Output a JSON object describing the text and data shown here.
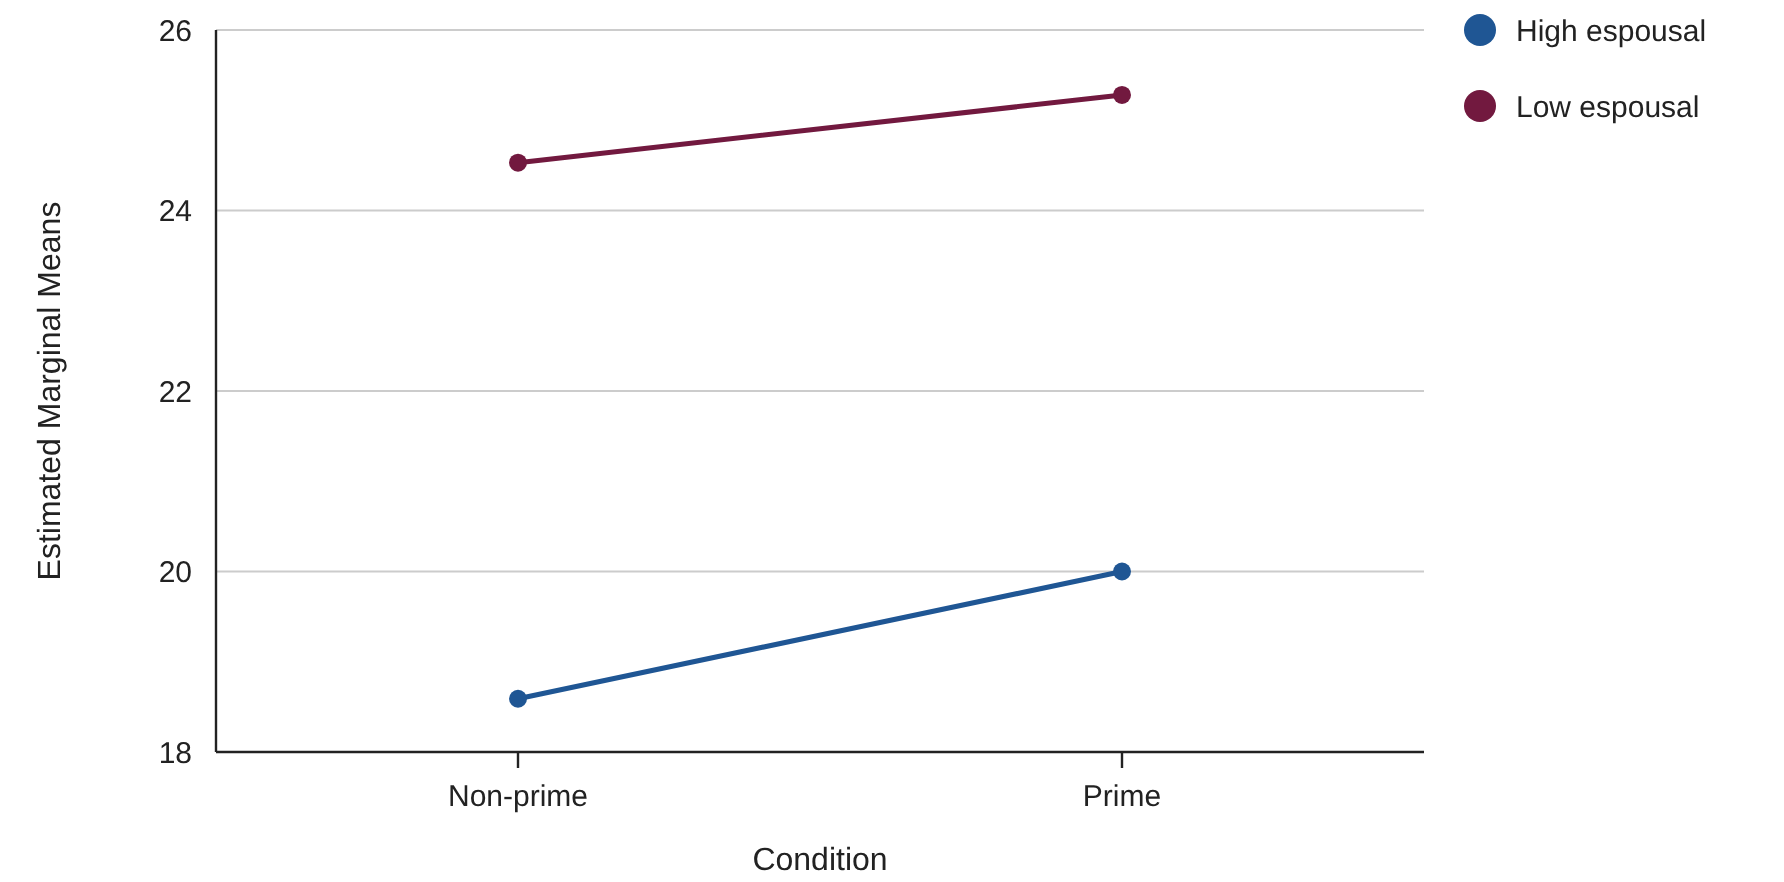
{
  "chart_data": {
    "type": "line",
    "xlabel": "Condition",
    "ylabel": "Estimated Marginal Means",
    "categories": [
      "Non-prime",
      "Prime"
    ],
    "series": [
      {
        "name": "High espousal",
        "color": "#1f5694",
        "values": [
          18.59,
          20.0
        ]
      },
      {
        "name": "Low espousal",
        "color": "#72193f",
        "values": [
          24.53,
          25.28
        ]
      }
    ],
    "ylim": [
      18,
      26
    ],
    "yticks": [
      18,
      20,
      22,
      24,
      26
    ],
    "grid": "y",
    "legend": "top right",
    "marker": "circle",
    "line_style": "solid"
  }
}
